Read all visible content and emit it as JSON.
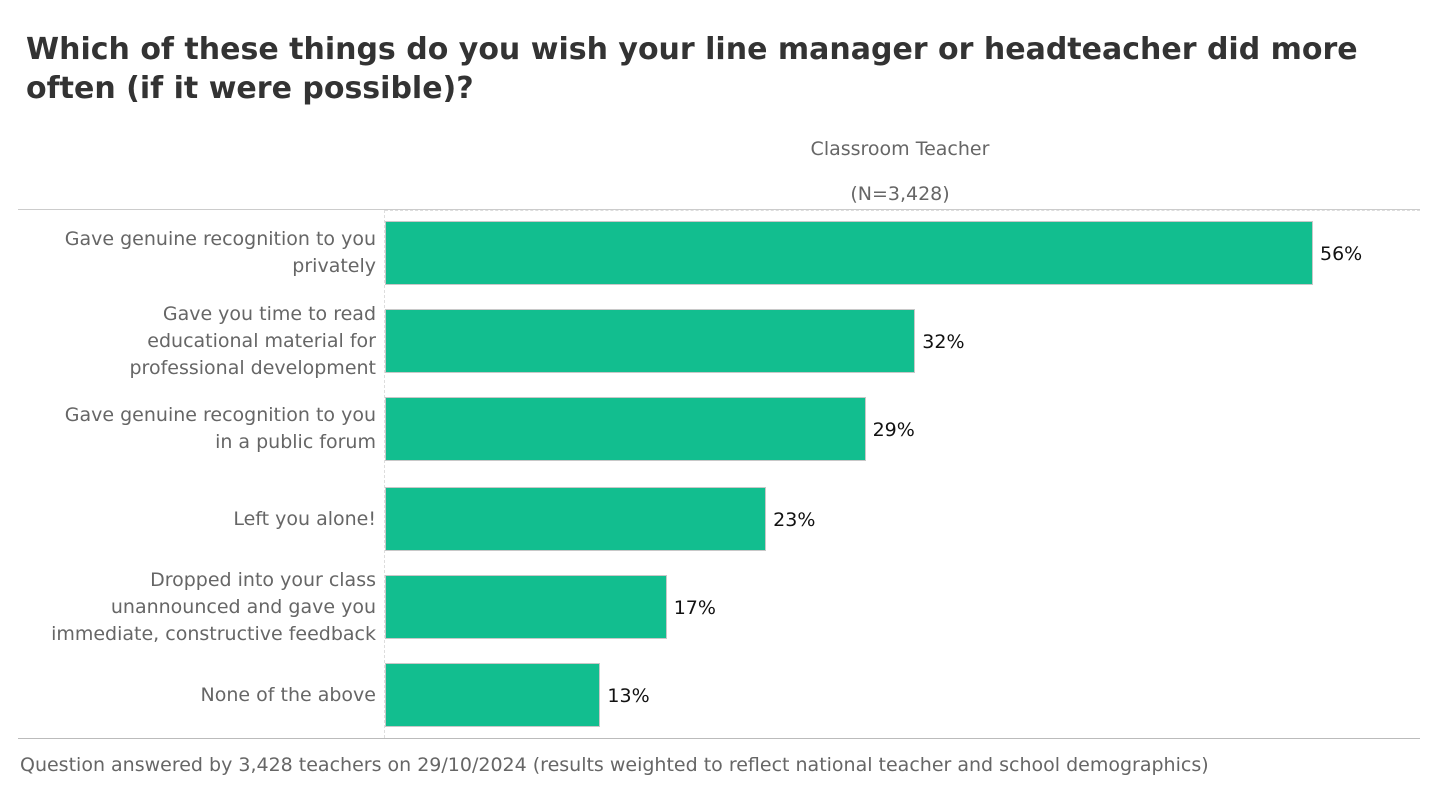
{
  "chart_data": {
    "type": "bar",
    "orientation": "horizontal",
    "title": "Which of these things do you wish your line manager or headteacher did more often (if it were possible)?",
    "series_name": "Classroom Teacher",
    "series_subtitle": "(N=3,428)",
    "categories": [
      [
        "Gave genuine recognition to you",
        "privately"
      ],
      [
        "Gave you time to read",
        "educational material for",
        "professional development"
      ],
      [
        "Gave genuine recognition to you",
        "in a public forum"
      ],
      [
        "Left you alone!"
      ],
      [
        "Dropped into your class",
        "unannounced and gave you",
        "immediate, constructive feedback"
      ],
      [
        "None of the above"
      ]
    ],
    "values": [
      56,
      32,
      29,
      23,
      17,
      13
    ],
    "value_labels": [
      "56%",
      "32%",
      "29%",
      "23%",
      "17%",
      "13%"
    ],
    "unit": "%",
    "xlim": [
      0,
      56
    ],
    "bar_color": "#12be8f",
    "footnote": "Question answered by 3,428 teachers on 29/10/2024 (results weighted to reflect national teacher and school demographics)"
  }
}
